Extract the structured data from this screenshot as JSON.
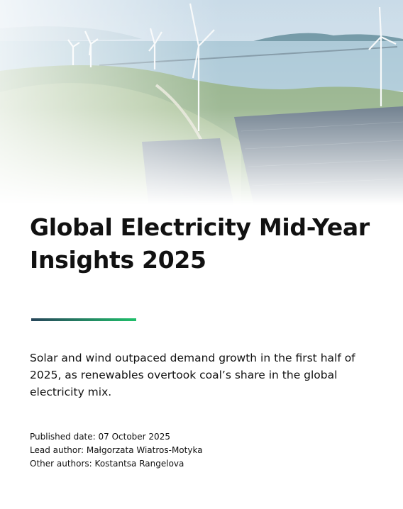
{
  "cover": {
    "title": "Global Electricity Mid-Year Insights 2025",
    "subtitle": "Solar and wind outpaced demand growth in the first half of 2025, as renewables overtook coal’s share in the global electricity mix.",
    "published": "Published date: 07 October 2025",
    "lead_author": "Lead author: Małgorzata Wiatros-Motyka",
    "other_authors": "Other authors: Kostantsa Rangelova"
  }
}
